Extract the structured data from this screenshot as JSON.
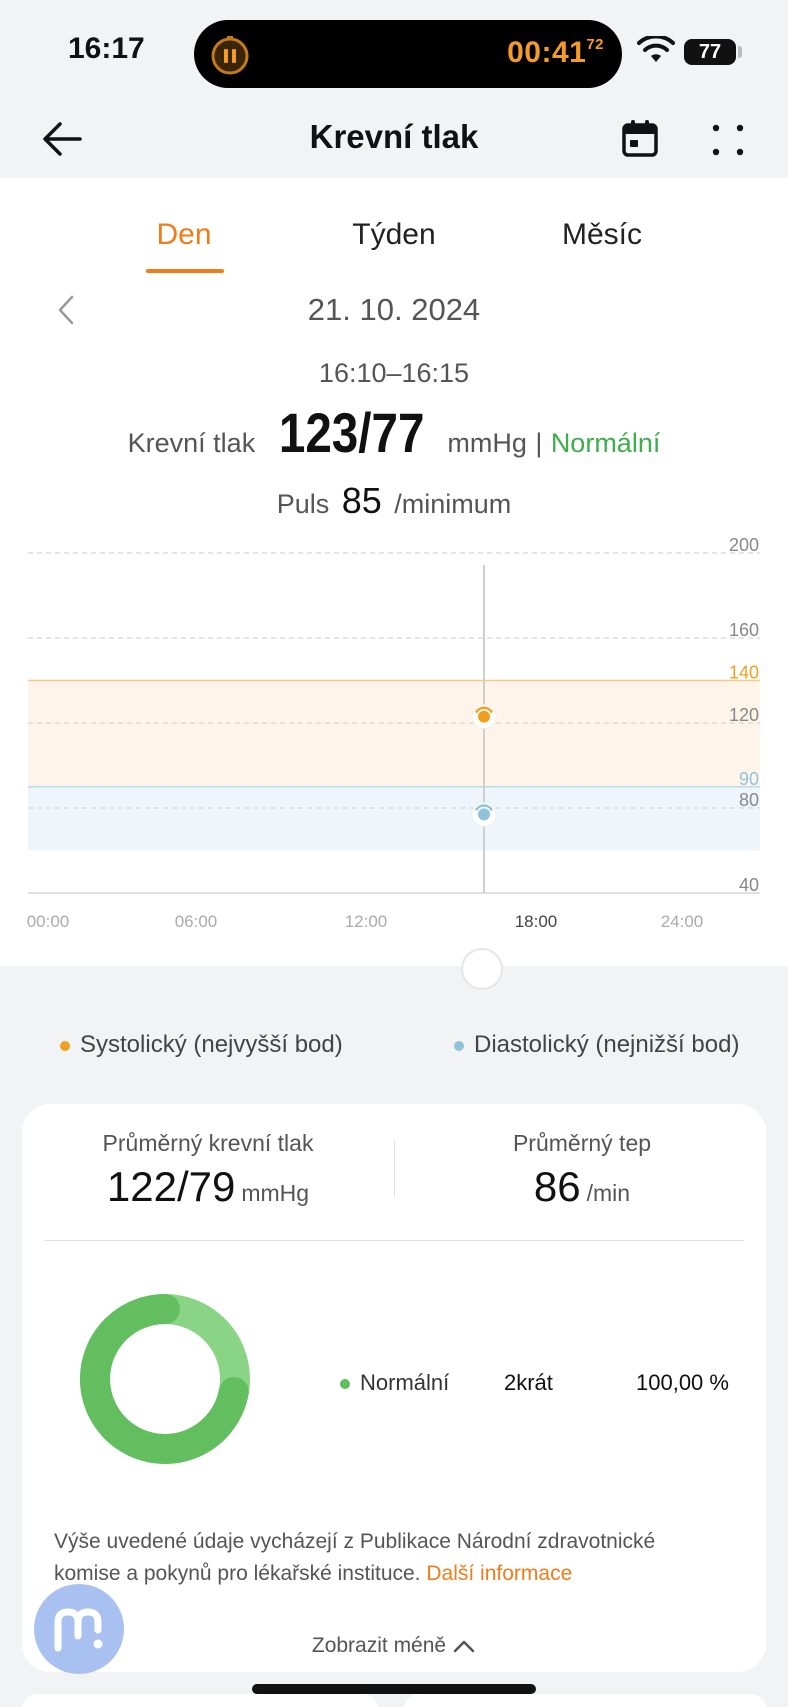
{
  "status_bar": {
    "time": "16:17",
    "timer_main": "00:41",
    "timer_fraction": "72",
    "battery": "77"
  },
  "header": {
    "title": "Krevní tlak"
  },
  "tabs": [
    {
      "label": "Den",
      "active": true
    },
    {
      "label": "Týden",
      "active": false
    },
    {
      "label": "Měsíc",
      "active": false
    }
  ],
  "date": "21. 10. 2024",
  "time_range": "16:10–16:15",
  "reading": {
    "label": "Krevní tlak",
    "value": "123/77",
    "unit": "mmHg",
    "separator": "|",
    "status": "Normální",
    "pulse_label": "Puls",
    "pulse_value": "85",
    "pulse_unit": "/minimum"
  },
  "colors": {
    "accent": "#f07c1a",
    "normal": "#3dae4a",
    "systolic": "#f0a020",
    "diastolic": "#8fc3dc"
  },
  "chart_data": {
    "type": "scatter",
    "x_tick_labels": [
      "00:00",
      "06:00",
      "12:00",
      "18:00",
      "24:00"
    ],
    "y_tick_labels": [
      "200",
      "160",
      "140",
      "120",
      "90",
      "80",
      "40"
    ],
    "ylim": [
      40,
      200
    ],
    "xlim": [
      "00:00",
      "24:00"
    ],
    "grid": true,
    "reference_bands": [
      {
        "name": "systolic-threshold",
        "from": 90,
        "to": 140
      },
      {
        "name": "diastolic-threshold",
        "from": 60,
        "to": 90
      }
    ],
    "selected_time": "16:12",
    "series": [
      {
        "name": "Systolický (nejvyšší bod)",
        "points": [
          {
            "x": "16:12",
            "y": 123
          }
        ]
      },
      {
        "name": "Diastolický (nejnižší bod)",
        "points": [
          {
            "x": "16:12",
            "y": 77
          }
        ]
      }
    ]
  },
  "legend": {
    "systolic": "Systolický (nejvyšší bod)",
    "diastolic": "Diastolický (nejnižší bod)"
  },
  "summary": {
    "avg_bp_title": "Průměrný krevní tlak",
    "avg_bp_value": "122/79",
    "avg_bp_unit": "mmHg",
    "avg_hr_title": "Průměrný tep",
    "avg_hr_value": "86",
    "avg_hr_unit": "/min",
    "distribution": [
      {
        "label": "Normální",
        "count": "2krát",
        "percent": "100,00 %",
        "fraction": 1.0
      }
    ],
    "note_text": "Výše uvedené údaje vycházejí z Publikace Národní zdravotnické komise a pokynů pro lékařské instituce.",
    "note_link": "Další informace",
    "collapse_label": "Zobrazit méně"
  }
}
